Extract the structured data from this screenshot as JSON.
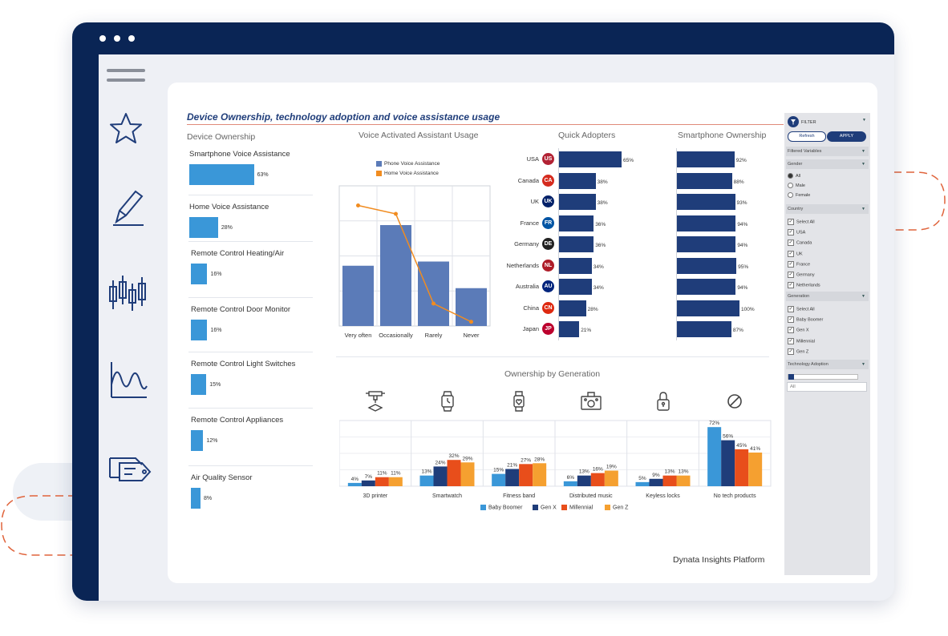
{
  "window": {
    "title": "Device Ownership, technology adoption and voice assistance usage",
    "footer": "Dynata Insights Platform"
  },
  "colors": {
    "navy": "#0a2555",
    "accent_blue": "#3a97d8",
    "dark_blue": "#1f3d7a",
    "line_orange": "#f18c20"
  },
  "sidebar_icons": [
    "hamburger-menu-icon",
    "star-icon",
    "pencil-icon",
    "candlestick-chart-icon",
    "wave-chart-icon",
    "tags-icon"
  ],
  "device_ownership": {
    "heading": "Device Ownership",
    "items": [
      {
        "label": "Smartphone Voice Assistance",
        "value": 63,
        "value_text": "63%"
      },
      {
        "label": "Home Voice Assistance",
        "value": 28,
        "value_text": "28%"
      },
      {
        "label": "Remote Control Heating/Air",
        "value": 16,
        "value_text": "16%"
      },
      {
        "label": "Remote Control Door Monitor",
        "value": 16,
        "value_text": "16%"
      },
      {
        "label": "Remote Control Light Switches",
        "value": 15,
        "value_text": "15%"
      },
      {
        "label": "Remote Control Appliances",
        "value": 12,
        "value_text": "12%"
      },
      {
        "label": "Air Quality Sensor",
        "value": 8,
        "value_text": "8%"
      }
    ]
  },
  "voice_usage": {
    "heading": "Voice Activated Assistant Usage",
    "legend": [
      "Phone Voice Assistance",
      "Home Voice Assistance"
    ]
  },
  "quick_adopters": {
    "heading": "Quick Adopters",
    "rows": [
      {
        "country": "USA",
        "value": 65,
        "value_text": "65%",
        "flag": "us-flag-icon",
        "flag_color": "#b22234",
        "flag_text": "US"
      },
      {
        "country": "Canada",
        "value": 38,
        "value_text": "38%",
        "flag": "canada-flag-icon",
        "flag_color": "#d52b1e",
        "flag_text": "CA"
      },
      {
        "country": "UK",
        "value": 38,
        "value_text": "38%",
        "flag": "uk-flag-icon",
        "flag_color": "#012169",
        "flag_text": "UK"
      },
      {
        "country": "France",
        "value": 36,
        "value_text": "36%",
        "flag": "france-flag-icon",
        "flag_color": "#0055a4",
        "flag_text": "FR"
      },
      {
        "country": "Germany",
        "value": 36,
        "value_text": "36%",
        "flag": "germany-flag-icon",
        "flag_color": "#222222",
        "flag_text": "DE"
      },
      {
        "country": "Netherlands",
        "value": 34,
        "value_text": "34%",
        "flag": "netherlands-flag-icon",
        "flag_color": "#ae1c28",
        "flag_text": "NL"
      },
      {
        "country": "Australia",
        "value": 34,
        "value_text": "34%",
        "flag": "australia-flag-icon",
        "flag_color": "#00247d",
        "flag_text": "AU"
      },
      {
        "country": "China",
        "value": 28,
        "value_text": "28%",
        "flag": "china-flag-icon",
        "flag_color": "#de2910",
        "flag_text": "CN"
      },
      {
        "country": "Japan",
        "value": 21,
        "value_text": "21%",
        "flag": "japan-flag-icon",
        "flag_color": "#bc002d",
        "flag_text": "JP"
      }
    ]
  },
  "smartphone_ownership": {
    "heading": "Smartphone Ownership",
    "values": [
      {
        "value": 92,
        "value_text": "92%"
      },
      {
        "value": 88,
        "value_text": "88%"
      },
      {
        "value": 93,
        "value_text": "93%"
      },
      {
        "value": 94,
        "value_text": "94%"
      },
      {
        "value": 94,
        "value_text": "94%"
      },
      {
        "value": 95,
        "value_text": "95%"
      },
      {
        "value": 94,
        "value_text": "94%"
      },
      {
        "value": 100,
        "value_text": "100%"
      },
      {
        "value": 87,
        "value_text": "87%"
      }
    ]
  },
  "filter": {
    "title": "FILTER",
    "refresh_label": "Refresh",
    "apply_label": "APPLY",
    "filtered_variables": "Filtered Variables",
    "gender": {
      "header": "Gender",
      "options": [
        "All",
        "Male",
        "Female"
      ],
      "selected": "All"
    },
    "country": {
      "header": "Country",
      "options": [
        "Select All",
        "USA",
        "Canada",
        "UK",
        "France",
        "Germany",
        "Netherlands"
      ]
    },
    "generation": {
      "header": "Generation",
      "options": [
        "Select All",
        "Baby Boomer",
        "Gen X",
        "Millennial",
        "Gen Z"
      ]
    },
    "technology_adoption": {
      "header": "Technology Adoption",
      "search_placeholder": "All"
    }
  },
  "ownership_by_generation": {
    "heading": "Ownership by Generation",
    "groups": [
      {
        "label": "3D printer",
        "icon": "3d-printer-icon",
        "value_texts": [
          "4%",
          "7%",
          "11%",
          "11%"
        ]
      },
      {
        "label": "Smartwatch",
        "icon": "smartwatch-icon",
        "value_texts": [
          "13%",
          "24%",
          "32%",
          "29%"
        ]
      },
      {
        "label": "Fitness band",
        "icon": "fitness-band-icon",
        "value_texts": [
          "15%",
          "21%",
          "27%",
          "28%"
        ]
      },
      {
        "label": "Distributed music",
        "icon": "speaker-icon",
        "value_texts": [
          "6%",
          "13%",
          "16%",
          "19%"
        ]
      },
      {
        "label": "Keyless locks",
        "icon": "padlock-icon",
        "value_texts": [
          "5%",
          "9%",
          "13%",
          "13%"
        ]
      },
      {
        "label": "No tech products",
        "icon": "no-symbol-icon",
        "value_texts": [
          "72%",
          "56%",
          "45%",
          "41%"
        ]
      }
    ],
    "legend": [
      "Baby Boomer",
      "Gen X",
      "Millennial",
      "Gen Z"
    ],
    "series_colors": [
      "#3a97d8",
      "#1f3d7a",
      "#e84e1b",
      "#f5a030"
    ]
  },
  "chart_data": [
    {
      "type": "bar",
      "title": "Voice Activated Assistant Usage",
      "categories": [
        "Very often",
        "Occasionally",
        "Rarely",
        "Never"
      ],
      "series": [
        {
          "name": "Phone Voice Assistance",
          "values": [
            43,
            72,
            46,
            27
          ]
        }
      ],
      "overlay_line": {
        "name": "Home Voice Assistance",
        "values": [
          86,
          80,
          16,
          3
        ]
      },
      "ylim": [
        0,
        100
      ],
      "grid": true
    },
    {
      "type": "bar",
      "title": "Ownership by Generation",
      "categories": [
        "3D printer",
        "Smartwatch",
        "Fitness band",
        "Distributed music",
        "Keyless locks",
        "No tech products"
      ],
      "series": [
        {
          "name": "Baby Boomer",
          "values": [
            4,
            13,
            15,
            6,
            5,
            72
          ]
        },
        {
          "name": "Gen X",
          "values": [
            7,
            24,
            21,
            13,
            9,
            56
          ]
        },
        {
          "name": "Millennial",
          "values": [
            11,
            32,
            27,
            16,
            13,
            45
          ]
        },
        {
          "name": "Gen Z",
          "values": [
            11,
            29,
            28,
            19,
            13,
            41
          ]
        }
      ],
      "ylim": [
        0,
        80
      ],
      "grid": true,
      "legend_position": "bottom"
    }
  ]
}
